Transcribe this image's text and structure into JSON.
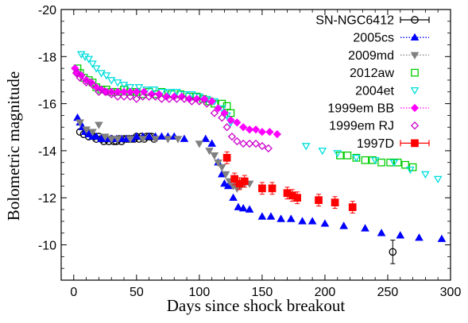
{
  "chart_data": {
    "type": "scatter",
    "xlabel": "Days since shock breakout",
    "ylabel": "Bolometric magnitude",
    "xlim": [
      -10,
      300
    ],
    "ylim": [
      -20,
      -8.5
    ],
    "y_inverted": true,
    "grid": false,
    "legend_position": "top-right",
    "x_ticks": [
      "0",
      "50",
      "100",
      "150",
      "200",
      "250",
      "300"
    ],
    "y_ticks": [
      "-20",
      "-18",
      "-16",
      "-14",
      "-12",
      "-10"
    ],
    "series": [
      {
        "name": "SN-NGC6412",
        "marker": "circle-open",
        "color": "#000000",
        "points": [
          [
            5,
            -14.8
          ],
          [
            8,
            -14.7
          ],
          [
            10,
            -14.8
          ],
          [
            12,
            -14.6
          ],
          [
            14,
            -14.7
          ],
          [
            16,
            -14.6
          ],
          [
            18,
            -14.5
          ],
          [
            20,
            -14.6
          ],
          [
            22,
            -14.5
          ],
          [
            24,
            -14.4
          ],
          [
            26,
            -14.5
          ],
          [
            28,
            -14.4
          ],
          [
            30,
            -14.5
          ],
          [
            32,
            -14.4
          ],
          [
            34,
            -14.4
          ],
          [
            36,
            -14.5
          ],
          [
            38,
            -14.4
          ],
          [
            40,
            -14.5
          ],
          [
            42,
            -14.5
          ],
          [
            44,
            -14.5
          ],
          [
            46,
            -14.5
          ],
          [
            48,
            -14.5
          ],
          [
            50,
            -14.6
          ],
          [
            52,
            -14.5
          ],
          [
            54,
            -14.6
          ],
          [
            56,
            -14.5
          ],
          [
            58,
            -14.6
          ],
          [
            60,
            -14.6
          ],
          [
            62,
            -14.6
          ],
          [
            64,
            -14.5
          ],
          [
            254,
            -9.7
          ]
        ],
        "errors": [
          [
            254,
            0.5
          ]
        ]
      },
      {
        "name": "2005cs",
        "marker": "triangle-filled",
        "color": "#0000ff",
        "points": [
          [
            3,
            -15.4
          ],
          [
            5,
            -15.2
          ],
          [
            7,
            -15.0
          ],
          [
            9,
            -14.8
          ],
          [
            12,
            -14.7
          ],
          [
            15,
            -14.6
          ],
          [
            18,
            -14.6
          ],
          [
            22,
            -14.5
          ],
          [
            26,
            -14.5
          ],
          [
            30,
            -14.5
          ],
          [
            34,
            -14.5
          ],
          [
            38,
            -14.5
          ],
          [
            42,
            -14.5
          ],
          [
            46,
            -14.5
          ],
          [
            50,
            -14.6
          ],
          [
            55,
            -14.6
          ],
          [
            60,
            -14.6
          ],
          [
            65,
            -14.6
          ],
          [
            70,
            -14.6
          ],
          [
            75,
            -14.6
          ],
          [
            80,
            -14.6
          ],
          [
            88,
            -14.5
          ],
          [
            105,
            -14.5
          ],
          [
            110,
            -14.3
          ],
          [
            115,
            -13.5
          ],
          [
            118,
            -13.0
          ],
          [
            120,
            -12.6
          ],
          [
            123,
            -12.5
          ],
          [
            127,
            -12.0
          ],
          [
            131,
            -11.6
          ],
          [
            135,
            -11.55
          ],
          [
            140,
            -11.5
          ],
          [
            150,
            -11.2
          ],
          [
            157,
            -11.2
          ],
          [
            165,
            -11.1
          ],
          [
            173,
            -11.1
          ],
          [
            182,
            -11.0
          ],
          [
            190,
            -11.0
          ],
          [
            200,
            -10.9
          ],
          [
            215,
            -10.8
          ],
          [
            232,
            -10.7
          ],
          [
            245,
            -10.5
          ],
          [
            260,
            -10.4
          ],
          [
            275,
            -10.3
          ],
          [
            293,
            -10.25
          ]
        ]
      },
      {
        "name": "2009md",
        "marker": "triangle-down-filled",
        "color": "#808080",
        "points": [
          [
            5,
            -15.2
          ],
          [
            10,
            -14.9
          ],
          [
            15,
            -14.8
          ],
          [
            20,
            -15.1
          ],
          [
            25,
            -14.6
          ],
          [
            30,
            -14.5
          ],
          [
            35,
            -14.5
          ],
          [
            45,
            -14.5
          ],
          [
            55,
            -14.5
          ],
          [
            65,
            -14.5
          ],
          [
            75,
            -14.5
          ],
          [
            83,
            -14.5
          ],
          [
            100,
            -14.3
          ],
          [
            108,
            -14.0
          ],
          [
            112,
            -13.8
          ],
          [
            115,
            -13.5
          ],
          [
            118,
            -13.3
          ],
          [
            121,
            -13.0
          ],
          [
            124,
            -12.7
          ],
          [
            127,
            -12.5
          ],
          [
            130,
            -12.4
          ],
          [
            133,
            -12.5
          ],
          [
            136,
            -12.6
          ],
          [
            140,
            -12.6
          ]
        ]
      },
      {
        "name": "2012aw",
        "marker": "square-open",
        "color": "#00cc00",
        "points": [
          [
            3,
            -17.5
          ],
          [
            5,
            -17.3
          ],
          [
            8,
            -17.1
          ],
          [
            12,
            -17.0
          ],
          [
            15,
            -16.9
          ],
          [
            18,
            -16.7
          ],
          [
            22,
            -16.6
          ],
          [
            26,
            -16.6
          ],
          [
            30,
            -16.5
          ],
          [
            35,
            -16.5
          ],
          [
            40,
            -16.6
          ],
          [
            45,
            -16.5
          ],
          [
            50,
            -16.5
          ],
          [
            55,
            -16.4
          ],
          [
            60,
            -16.5
          ],
          [
            65,
            -16.4
          ],
          [
            70,
            -16.5
          ],
          [
            78,
            -16.4
          ],
          [
            85,
            -16.4
          ],
          [
            92,
            -16.3
          ],
          [
            98,
            -16.3
          ],
          [
            103,
            -16.2
          ],
          [
            108,
            -16.1
          ],
          [
            112,
            -16.0
          ],
          [
            118,
            -16.0
          ],
          [
            122,
            -15.9
          ],
          [
            125,
            -15.6
          ],
          [
            212,
            -13.8
          ],
          [
            218,
            -13.8
          ],
          [
            225,
            -13.7
          ],
          [
            232,
            -13.6
          ],
          [
            238,
            -13.6
          ],
          [
            245,
            -13.5
          ],
          [
            252,
            -13.5
          ],
          [
            258,
            -13.5
          ],
          [
            264,
            -13.4
          ],
          [
            270,
            -13.3
          ]
        ]
      },
      {
        "name": "2004et",
        "marker": "triangle-down-open",
        "color": "#00dddd",
        "points": [
          [
            6,
            -18.1
          ],
          [
            9,
            -18.0
          ],
          [
            12,
            -17.9
          ],
          [
            15,
            -17.7
          ],
          [
            18,
            -17.5
          ],
          [
            22,
            -17.3
          ],
          [
            26,
            -17.2
          ],
          [
            30,
            -17.0
          ],
          [
            35,
            -16.9
          ],
          [
            40,
            -16.8
          ],
          [
            45,
            -16.7
          ],
          [
            52,
            -16.7
          ],
          [
            58,
            -16.6
          ],
          [
            64,
            -16.6
          ],
          [
            70,
            -16.5
          ],
          [
            76,
            -16.5
          ],
          [
            82,
            -16.5
          ],
          [
            88,
            -16.4
          ],
          [
            94,
            -16.4
          ],
          [
            100,
            -16.3
          ],
          [
            106,
            -16.2
          ],
          [
            112,
            -16.1
          ],
          [
            118,
            -15.8
          ],
          [
            122,
            -15.5
          ],
          [
            125,
            -15.2
          ],
          [
            185,
            -14.2
          ],
          [
            198,
            -14.0
          ],
          [
            210,
            -13.9
          ],
          [
            225,
            -13.7
          ],
          [
            240,
            -13.6
          ],
          [
            255,
            -13.5
          ],
          [
            268,
            -13.2
          ],
          [
            280,
            -13.0
          ],
          [
            290,
            -12.8
          ]
        ]
      },
      {
        "name": "1999em BB",
        "marker": "diamond-filled",
        "color": "#ff00ff",
        "points": [
          [
            1,
            -17.5
          ],
          [
            3,
            -17.3
          ],
          [
            6,
            -17.2
          ],
          [
            10,
            -17.0
          ],
          [
            14,
            -16.9
          ],
          [
            18,
            -16.7
          ],
          [
            22,
            -16.6
          ],
          [
            26,
            -16.5
          ],
          [
            30,
            -16.5
          ],
          [
            35,
            -16.5
          ],
          [
            40,
            -16.5
          ],
          [
            45,
            -16.5
          ],
          [
            50,
            -16.5
          ],
          [
            56,
            -16.5
          ],
          [
            62,
            -16.4
          ],
          [
            68,
            -16.4
          ],
          [
            74,
            -16.3
          ],
          [
            80,
            -16.3
          ],
          [
            86,
            -16.3
          ],
          [
            92,
            -16.2
          ],
          [
            98,
            -16.2
          ],
          [
            104,
            -16.2
          ],
          [
            110,
            -16.1
          ],
          [
            115,
            -15.8
          ],
          [
            120,
            -15.6
          ],
          [
            125,
            -15.3
          ],
          [
            130,
            -15.2
          ],
          [
            135,
            -15.0
          ],
          [
            140,
            -14.9
          ],
          [
            145,
            -14.9
          ],
          [
            150,
            -14.8
          ],
          [
            156,
            -14.8
          ],
          [
            162,
            -14.7
          ]
        ]
      },
      {
        "name": "1999em RJ",
        "marker": "diamond-open",
        "color": "#cc00cc",
        "points": [
          [
            2,
            -17.3
          ],
          [
            5,
            -17.1
          ],
          [
            10,
            -16.9
          ],
          [
            15,
            -16.8
          ],
          [
            20,
            -16.5
          ],
          [
            25,
            -16.5
          ],
          [
            30,
            -16.4
          ],
          [
            35,
            -16.3
          ],
          [
            40,
            -16.3
          ],
          [
            45,
            -16.3
          ],
          [
            50,
            -16.2
          ],
          [
            55,
            -16.3
          ],
          [
            60,
            -16.3
          ],
          [
            65,
            -16.3
          ],
          [
            70,
            -16.2
          ],
          [
            76,
            -16.2
          ],
          [
            82,
            -16.2
          ],
          [
            88,
            -16.2
          ],
          [
            94,
            -16.1
          ],
          [
            100,
            -16.1
          ],
          [
            106,
            -16.0
          ],
          [
            112,
            -15.6
          ],
          [
            118,
            -15.4
          ],
          [
            122,
            -15.0
          ],
          [
            126,
            -14.6
          ],
          [
            130,
            -14.4
          ],
          [
            135,
            -14.3
          ],
          [
            140,
            -14.3
          ],
          [
            145,
            -14.3
          ],
          [
            150,
            -14.2
          ],
          [
            155,
            -14.1
          ]
        ]
      },
      {
        "name": "1997D",
        "marker": "square-filled",
        "color": "#ff0000",
        "points": [
          [
            122,
            -13.7
          ],
          [
            128,
            -12.8
          ],
          [
            132,
            -12.6
          ],
          [
            136,
            -12.7
          ],
          [
            150,
            -12.4
          ],
          [
            158,
            -12.4
          ],
          [
            170,
            -12.2
          ],
          [
            174,
            -12.1
          ],
          [
            178,
            -12.0
          ],
          [
            195,
            -11.9
          ],
          [
            208,
            -11.8
          ],
          [
            222,
            -11.6
          ]
        ],
        "errors": [
          [
            122,
            0.25
          ],
          [
            128,
            0.25
          ],
          [
            132,
            0.25
          ],
          [
            136,
            0.25
          ],
          [
            150,
            0.25
          ],
          [
            158,
            0.25
          ],
          [
            170,
            0.25
          ],
          [
            174,
            0.25
          ],
          [
            178,
            0.25
          ],
          [
            195,
            0.25
          ],
          [
            208,
            0.25
          ],
          [
            222,
            0.25
          ]
        ]
      }
    ]
  }
}
